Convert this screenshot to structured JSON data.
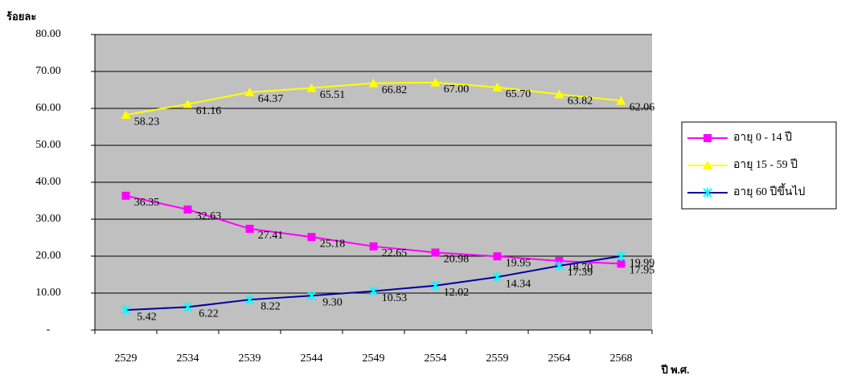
{
  "chart_data": {
    "type": "line",
    "y_label": "ร้อยละ",
    "x_label": "ปี พ.ศ.",
    "categories": [
      "2529",
      "2534",
      "2539",
      "2544",
      "2549",
      "2554",
      "2559",
      "2564",
      "2568"
    ],
    "series": [
      {
        "name": "อายุ 0 - 14 ปี",
        "color": "#ff00ff",
        "marker": "square",
        "values": [
          36.35,
          32.63,
          27.41,
          25.18,
          22.65,
          20.98,
          19.95,
          18.7,
          17.95
        ],
        "value_labels": [
          "36.35",
          "32.63",
          "27.41",
          "25.18",
          "22.65",
          "20.98",
          "19.95",
          "18.70",
          "17.95"
        ]
      },
      {
        "name": "อายุ 15 - 59 ปี",
        "color": "#ffff00",
        "marker": "triangle",
        "values": [
          58.23,
          61.16,
          64.37,
          65.51,
          66.82,
          67.0,
          65.7,
          63.82,
          62.06
        ],
        "value_labels": [
          "58.23",
          "61.16",
          "64.37",
          "65.51",
          "66.82",
          "67.00",
          "65.70",
          "63.82",
          "62.06"
        ]
      },
      {
        "name": "อายุ 60 ปีขึ้นไป",
        "color": "#00ffff",
        "line_color": "#0000a0",
        "marker": "x",
        "values": [
          5.42,
          6.22,
          8.22,
          9.3,
          10.53,
          12.02,
          14.34,
          17.39,
          19.99
        ],
        "value_labels": [
          "5.42",
          "6.22",
          "8.22",
          "9.30",
          "10.53",
          "12.02",
          "14.34",
          "17.39",
          "19.99"
        ]
      }
    ],
    "ylim": [
      0,
      80
    ],
    "yticks": [
      {
        "value": 0,
        "label": "-"
      },
      {
        "value": 10,
        "label": "10.00"
      },
      {
        "value": 20,
        "label": "20.00"
      },
      {
        "value": 30,
        "label": "30.00"
      },
      {
        "value": 40,
        "label": "40.00"
      },
      {
        "value": 50,
        "label": "50.00"
      },
      {
        "value": 60,
        "label": "60.00"
      },
      {
        "value": 70,
        "label": "70.00"
      },
      {
        "value": 80,
        "label": "80.00"
      }
    ],
    "grid": true,
    "plot_background": "#c0c0c0",
    "legend": "right"
  }
}
